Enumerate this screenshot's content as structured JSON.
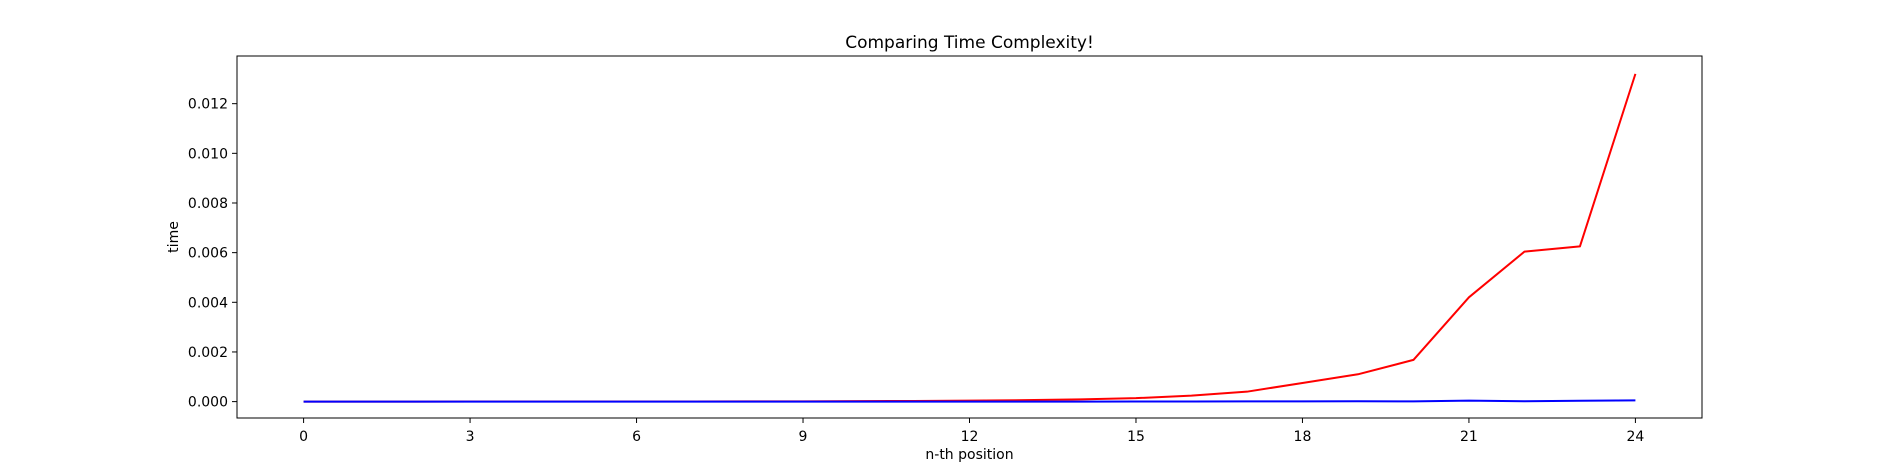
{
  "chart_data": {
    "type": "line",
    "title": "Comparing Time Complexity!",
    "xlabel": "n-th position",
    "ylabel": "time",
    "x": [
      0,
      1,
      2,
      3,
      4,
      5,
      6,
      7,
      8,
      9,
      10,
      11,
      12,
      13,
      14,
      15,
      16,
      17,
      18,
      19,
      20,
      21,
      22,
      23,
      24
    ],
    "xticks": [
      0,
      3,
      6,
      9,
      12,
      15,
      18,
      21,
      24
    ],
    "xtick_labels": [
      "0",
      "3",
      "6",
      "9",
      "12",
      "15",
      "18",
      "21",
      "24"
    ],
    "yticks": [
      0,
      0.002,
      0.004,
      0.006,
      0.008,
      0.01,
      0.012
    ],
    "ytick_labels": [
      "0.000",
      "0.002",
      "0.004",
      "0.006",
      "0.008",
      "0.010",
      "0.012"
    ],
    "xlim": [
      -1.2,
      25.2
    ],
    "ylim": [
      -0.00066,
      0.01392
    ],
    "grid": false,
    "series": [
      {
        "color": "#ff0000",
        "values": [
          1e-06,
          1e-06,
          1e-06,
          2e-06,
          2e-06,
          3e-06,
          4e-06,
          6e-06,
          8e-06,
          1.2e-05,
          1.8e-05,
          2.6e-05,
          4e-05,
          6e-05,
          9e-05,
          0.00014,
          0.00024,
          0.0004,
          0.00075,
          0.0011,
          0.00168,
          0.0042,
          0.00604,
          0.00625,
          0.0132
        ]
      },
      {
        "color": "#0000ff",
        "values": [
          0,
          0,
          0,
          0,
          0,
          0,
          0,
          0,
          0,
          0,
          0,
          0,
          0,
          0,
          0,
          5e-06,
          5e-06,
          8e-06,
          1e-05,
          1.5e-05,
          8e-06,
          4e-05,
          1.5e-05,
          3.5e-05,
          5e-05
        ]
      }
    ]
  }
}
